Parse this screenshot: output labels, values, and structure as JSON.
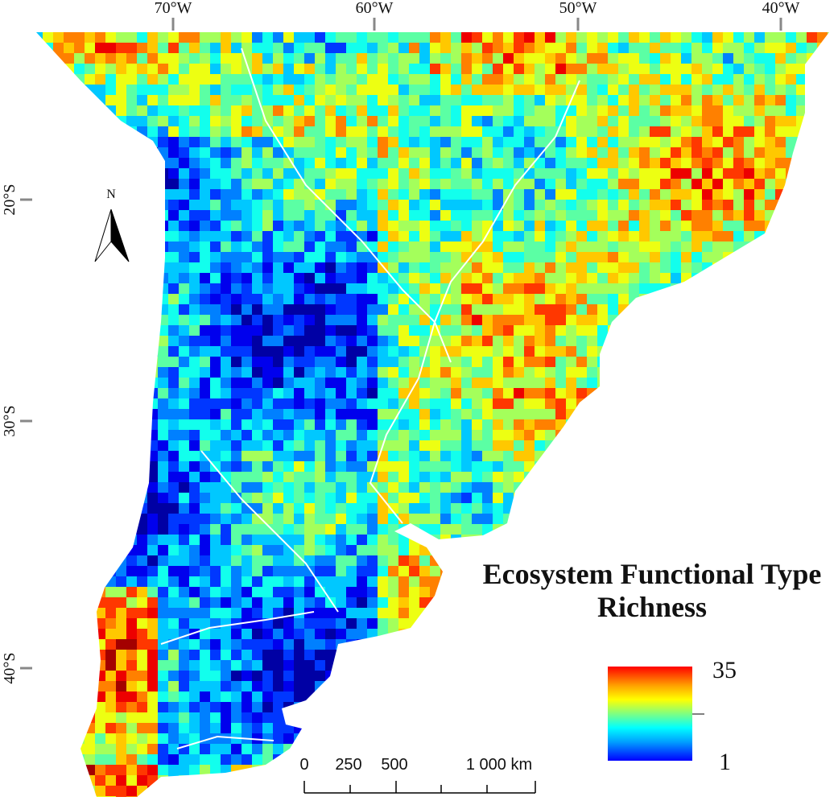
{
  "graticule": {
    "longitudes": [
      "70°W",
      "60°W",
      "50°W",
      "40°W"
    ],
    "latitudes": [
      "20°S",
      "30°S",
      "40°S"
    ]
  },
  "north_arrow": "N",
  "title": [
    "Ecosystem Functional Type",
    "Richness"
  ],
  "legend": {
    "max": "35",
    "min": "1"
  },
  "scale_bar": {
    "labels": [
      "0",
      "250",
      "500",
      "1 000 km"
    ]
  }
}
